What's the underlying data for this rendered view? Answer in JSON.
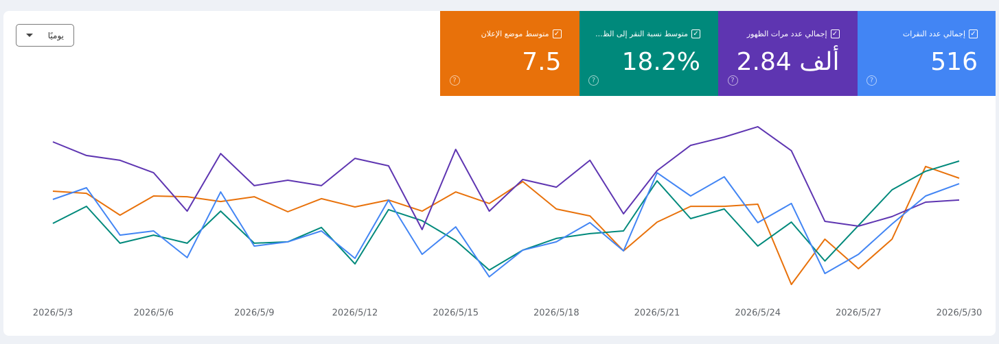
{
  "chart_data": {
    "type": "line",
    "dropdown": "يوميًا",
    "categories": [
      "2026/5/3",
      null,
      null,
      "2026/5/6",
      null,
      null,
      "2026/5/9",
      null,
      null,
      "2026/5/12",
      null,
      null,
      "2026/5/15",
      null,
      null,
      "2026/5/18",
      null,
      null,
      "2026/5/21",
      null,
      null,
      "2026/5/24",
      null,
      null,
      "2026/5/27",
      null,
      null,
      "2026/5/30"
    ],
    "ylim": [
      0,
      100
    ],
    "series": [
      {
        "name": "إجمالي عدد النقرات",
        "summary": "516",
        "color": "#4285f4",
        "values": [
          53.2,
          59.3,
          34.6,
          36.8,
          22.9,
          57.1,
          28.9,
          31.1,
          36.8,
          22.5,
          52.9,
          24.6,
          38.9,
          12.9,
          26.8,
          31.1,
          41.1,
          26.4,
          67.1,
          55,
          65,
          41.1,
          51.1,
          14.6,
          24.6,
          40.4,
          55,
          61.4
        ]
      },
      {
        "name": "إجمالي عدد مرات الظهور",
        "summary": "2.84 ألف",
        "color": "#5e35b1",
        "values": [
          83.2,
          76.1,
          73.6,
          67.1,
          47.1,
          77.1,
          60.4,
          63.2,
          60.4,
          74.6,
          70.7,
          37.5,
          79.3,
          47.1,
          63.6,
          59.6,
          73.6,
          45.7,
          68.2,
          81.4,
          85.7,
          91.1,
          78.6,
          41.8,
          39.3,
          44.3,
          51.8,
          52.9
        ]
      },
      {
        "name": "متوسط نسبة النقر إلى الظ...",
        "summary": "18.2%",
        "color": "#00897b",
        "values": [
          40.7,
          49.6,
          30.4,
          34.6,
          30.4,
          47.1,
          30.4,
          31.1,
          38.6,
          19.6,
          47.9,
          42.1,
          31.8,
          16.4,
          26.8,
          32.9,
          35.4,
          36.8,
          62.9,
          43.2,
          48.2,
          28.9,
          41.4,
          21.1,
          39.6,
          58.2,
          67.9,
          73.2
        ]
      },
      {
        "name": "متوسط موضع الإعلان",
        "summary": "7.5",
        "color": "#e8710a",
        "values": [
          57.5,
          56.4,
          45,
          55,
          54.6,
          52.1,
          54.6,
          46.8,
          53.6,
          49.3,
          52.9,
          47.1,
          57.1,
          51.1,
          62.5,
          48.2,
          44.6,
          26.4,
          41.4,
          49.6,
          49.6,
          50.7,
          8.9,
          32.5,
          17.1,
          32.5,
          70.4,
          64.3
        ]
      }
    ]
  }
}
